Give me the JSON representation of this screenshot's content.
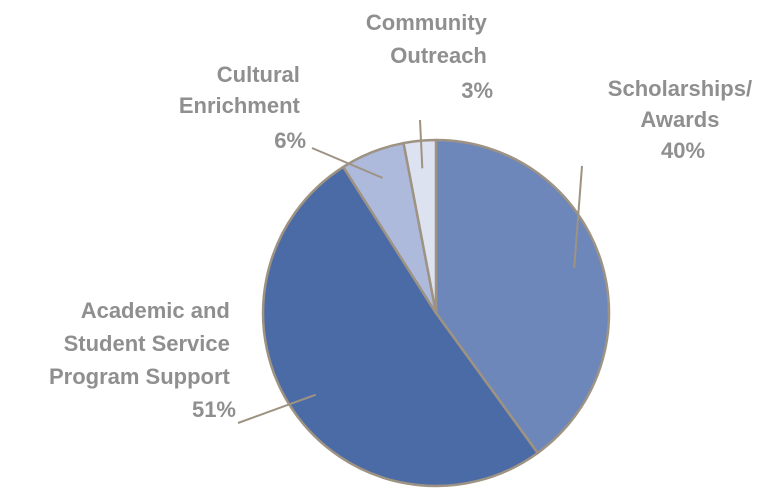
{
  "chart_data": {
    "type": "pie",
    "title": "",
    "colors": {
      "stroke": "#9e9383",
      "leader": "#9e9383",
      "label": "#8f8f8f"
    },
    "slices": [
      {
        "name_lines": [
          "Scholarships/",
          "Awards"
        ],
        "value": 40,
        "value_label": "40%",
        "color": "#6d87ba"
      },
      {
        "name_lines": [
          "Academic and",
          "Student Service",
          "Program Support"
        ],
        "value": 51,
        "value_label": "51%",
        "color": "#4b6ba7"
      },
      {
        "name_lines": [
          "Cultural",
          "Enrichment"
        ],
        "value": 6,
        "value_label": "6%",
        "color": "#aebadb"
      },
      {
        "name_lines": [
          "Community",
          "Outreach"
        ],
        "value": 3,
        "value_label": "3%",
        "color": "#dde2f0"
      }
    ]
  }
}
